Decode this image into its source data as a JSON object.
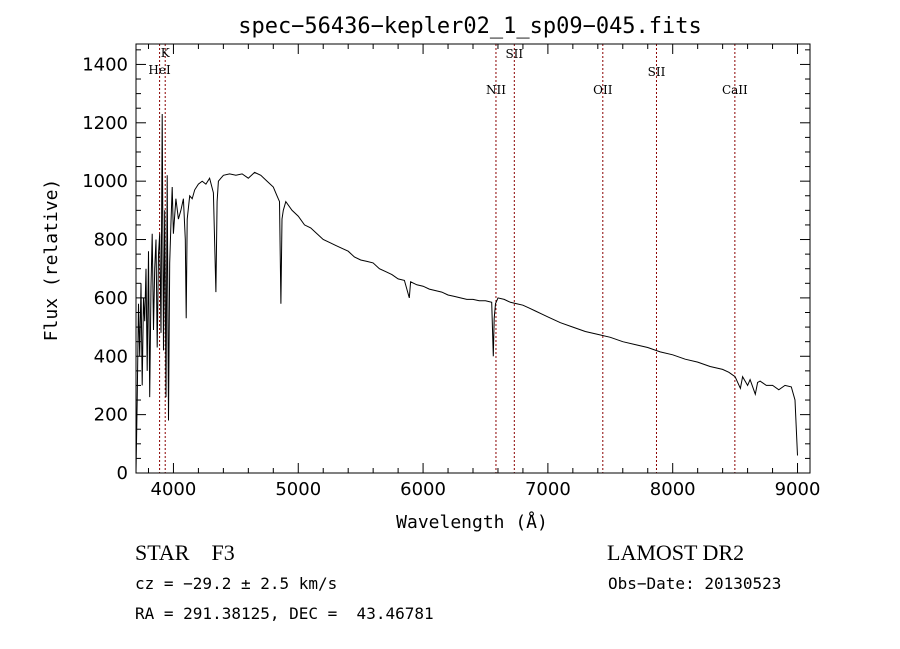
{
  "chart_data": {
    "type": "line",
    "title": "spec−56436−kepler02_1_sp09−045.fits",
    "xlabel": "Wavelength (Å)",
    "ylabel": "Flux (relative)",
    "xlim": [
      3700,
      9100
    ],
    "ylim": [
      0,
      1470
    ],
    "xticks": [
      4000,
      5000,
      6000,
      7000,
      8000,
      9000
    ],
    "yticks": [
      0,
      200,
      400,
      600,
      800,
      1000,
      1200,
      1400
    ],
    "grid": false,
    "line_color": "#000000",
    "line_marker_color": "#8b0000",
    "series": [
      {
        "x": [
          3700,
          3710,
          3720,
          3730,
          3740,
          3750,
          3760,
          3770,
          3780,
          3790,
          3800,
          3810,
          3820,
          3830,
          3840,
          3850,
          3860,
          3870,
          3880,
          3890,
          3900,
          3910,
          3920,
          3930,
          3940,
          3950,
          3960,
          3970,
          3980,
          3990,
          4000,
          4020,
          4040,
          4060,
          4080,
          4095,
          4102,
          4110,
          4130,
          4150,
          4170,
          4200,
          4230,
          4260,
          4290,
          4320,
          4340,
          4350,
          4360,
          4380,
          4400,
          4450,
          4500,
          4550,
          4600,
          4650,
          4700,
          4750,
          4800,
          4830,
          4850,
          4861,
          4870,
          4880,
          4900,
          4950,
          5000,
          5050,
          5100,
          5150,
          5200,
          5250,
          5300,
          5350,
          5400,
          5450,
          5500,
          5550,
          5600,
          5650,
          5700,
          5750,
          5800,
          5850,
          5890,
          5900,
          5950,
          6000,
          6050,
          6100,
          6150,
          6200,
          6250,
          6300,
          6350,
          6400,
          6450,
          6500,
          6550,
          6563,
          6570,
          6580,
          6600,
          6650,
          6700,
          6750,
          6800,
          6850,
          6900,
          6950,
          7000,
          7100,
          7200,
          7300,
          7400,
          7500,
          7600,
          7700,
          7800,
          7900,
          8000,
          8100,
          8200,
          8300,
          8400,
          8450,
          8500,
          8542,
          8560,
          8600,
          8620,
          8662,
          8680,
          8700,
          8750,
          8800,
          8850,
          8900,
          8950,
          8980,
          9000
        ],
        "y": [
          0,
          250,
          580,
          400,
          650,
          300,
          600,
          520,
          700,
          350,
          760,
          260,
          640,
          820,
          490,
          700,
          800,
          430,
          750,
          820,
          480,
          1230,
          420,
          900,
          260,
          1020,
          180,
          720,
          850,
          980,
          820,
          940,
          870,
          900,
          940,
          800,
          530,
          870,
          950,
          940,
          970,
          990,
          1000,
          990,
          1010,
          960,
          620,
          930,
          1000,
          1010,
          1020,
          1025,
          1020,
          1025,
          1010,
          1030,
          1020,
          1000,
          980,
          950,
          930,
          580,
          870,
          900,
          930,
          900,
          880,
          850,
          840,
          820,
          800,
          790,
          780,
          770,
          760,
          740,
          730,
          725,
          720,
          700,
          690,
          680,
          665,
          660,
          600,
          655,
          645,
          640,
          630,
          625,
          620,
          610,
          605,
          600,
          595,
          595,
          590,
          590,
          585,
          400,
          530,
          580,
          600,
          595,
          585,
          580,
          575,
          565,
          555,
          545,
          535,
          515,
          500,
          485,
          475,
          465,
          450,
          440,
          430,
          415,
          405,
          390,
          380,
          365,
          355,
          345,
          330,
          290,
          330,
          300,
          320,
          270,
          310,
          315,
          300,
          300,
          285,
          300,
          295,
          250,
          60
        ]
      }
    ],
    "lines": [
      {
        "label": "K",
        "x": 3934
      },
      {
        "label": "HeI",
        "x": 3889
      },
      {
        "label": "NII",
        "x": 6584
      },
      {
        "label": "SII",
        "x": 6731
      },
      {
        "label": "OII",
        "x": 7440
      },
      {
        "label": "SII",
        "x": 7870
      },
      {
        "label": "CaII",
        "x": 8498
      }
    ]
  },
  "info": {
    "star": "STAR",
    "subclass": "F3",
    "survey": "LAMOST DR2",
    "cz": "cz = −29.2 ± 2.5 km/s",
    "obs_date": "Obs−Date: 20130523",
    "radec": "RA = 291.38125, DEC =  43.46781"
  }
}
